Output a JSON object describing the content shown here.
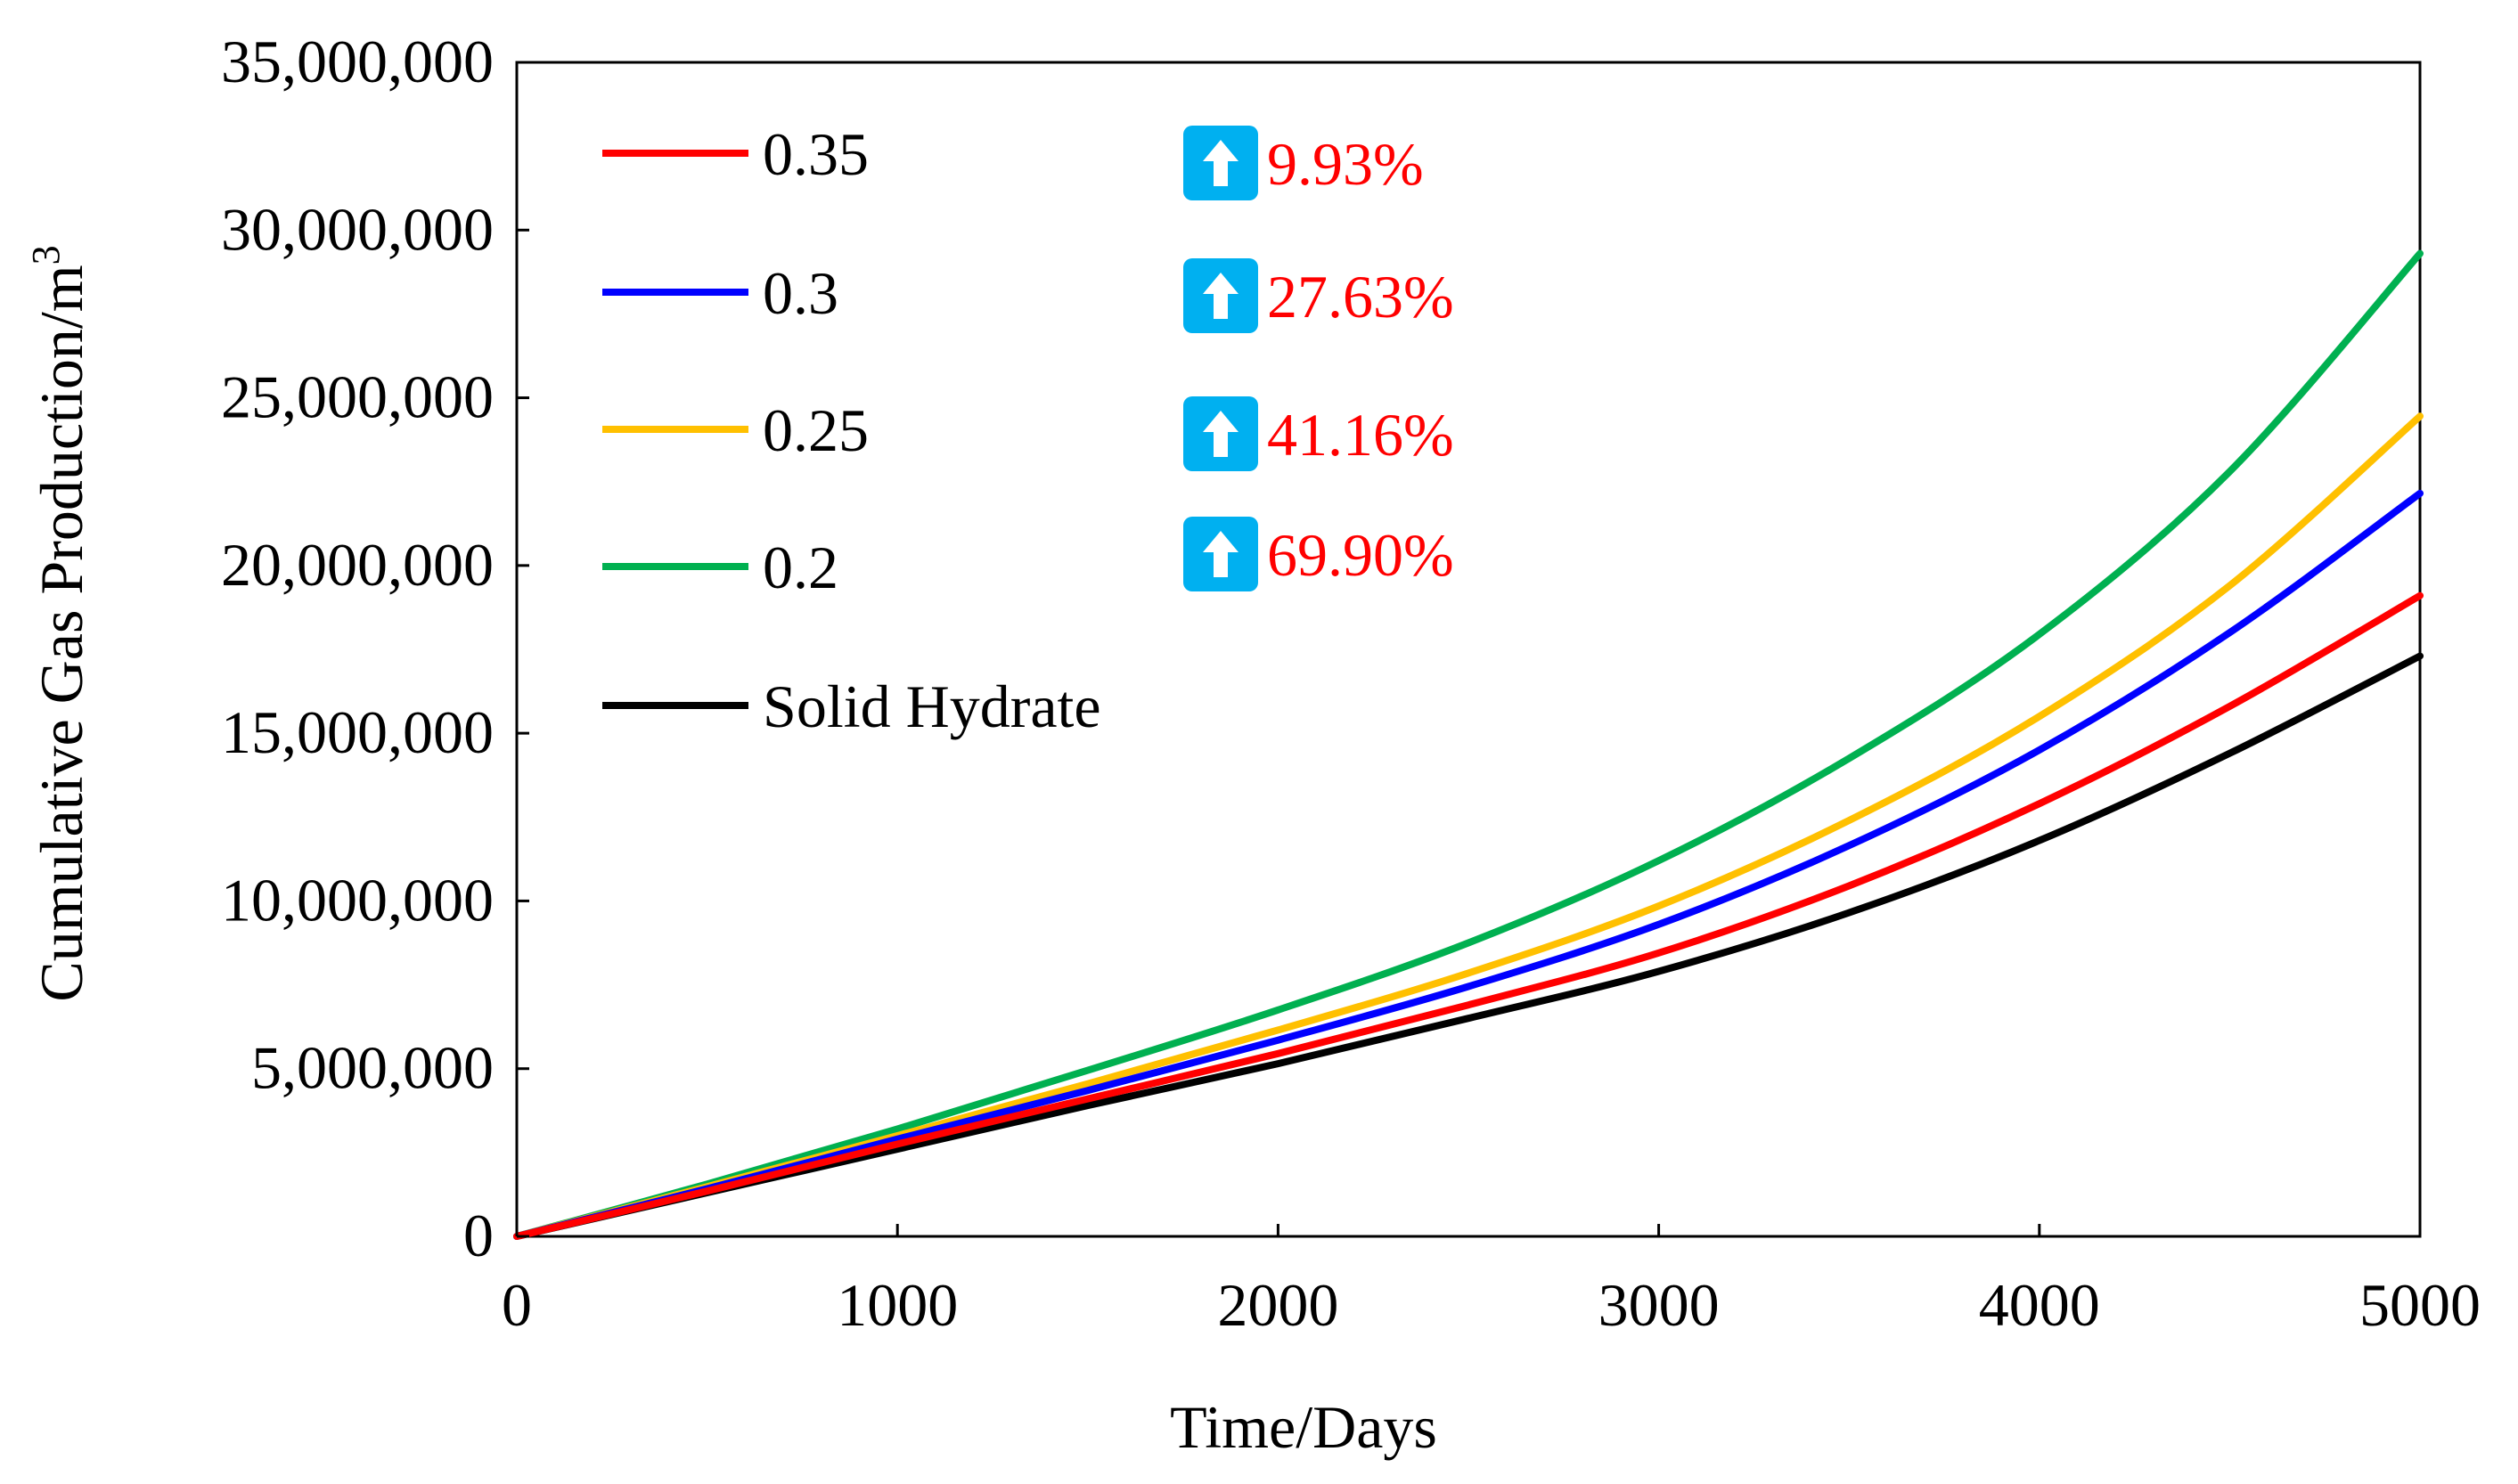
{
  "chart_data": {
    "type": "line",
    "title": "",
    "xlabel": "Time/Days",
    "ylabel": "Cumulative Gas Production/m",
    "ylabel_superscript": "3",
    "xlim": [
      0,
      5000
    ],
    "ylim": [
      0,
      35000000
    ],
    "grid": false,
    "legend_position": "top-left",
    "x_ticks": [
      0,
      1000,
      2000,
      3000,
      4000,
      5000
    ],
    "x_tick_labels": [
      "0",
      "1000",
      "2000",
      "3000",
      "4000",
      "5000"
    ],
    "y_ticks": [
      0,
      5000000,
      10000000,
      15000000,
      20000000,
      25000000,
      30000000,
      35000000
    ],
    "y_tick_labels": [
      "0",
      "5,000,000",
      "10,000,000",
      "15,000,000",
      "20,000,000",
      "25,000,000",
      "30,000,000",
      "35,000,000"
    ],
    "x": [
      0,
      500,
      1000,
      1500,
      2000,
      2500,
      3000,
      3500,
      4000,
      4500,
      5000
    ],
    "series": [
      {
        "name": "0.35",
        "color": "#ff0000",
        "values": [
          0,
          1350000,
          2750000,
          4100000,
          5450000,
          6900000,
          8450000,
          10450000,
          12900000,
          15800000,
          19100000
        ]
      },
      {
        "name": "0.3",
        "color": "#0000ff",
        "values": [
          0,
          1420000,
          2900000,
          4350000,
          5850000,
          7450000,
          9300000,
          11650000,
          14500000,
          18000000,
          22150000
        ]
      },
      {
        "name": "0.25",
        "color": "#ffc000",
        "values": [
          0,
          1480000,
          3000000,
          4550000,
          6150000,
          7850000,
          9850000,
          12400000,
          15500000,
          19400000,
          24450000
        ]
      },
      {
        "name": "0.2",
        "color": "#00b050",
        "values": [
          0,
          1560000,
          3200000,
          4950000,
          6750000,
          8750000,
          11200000,
          14250000,
          17950000,
          22800000,
          29300000
        ]
      },
      {
        "name": "Solid Hydrate",
        "color": "#000000",
        "values": [
          0,
          1300000,
          2600000,
          3900000,
          5150000,
          6500000,
          7900000,
          9650000,
          11800000,
          14400000,
          17300000
        ]
      }
    ],
    "annotations": [
      {
        "series": "0.35",
        "text": "9.93%",
        "color": "#ff0000",
        "icon": "up-arrow-icon"
      },
      {
        "series": "0.3",
        "text": "27.63%",
        "color": "#ff0000",
        "icon": "up-arrow-icon"
      },
      {
        "series": "0.25",
        "text": "41.16%",
        "color": "#ff0000",
        "icon": "up-arrow-icon"
      },
      {
        "series": "0.2",
        "text": "69.90%",
        "color": "#ff0000",
        "icon": "up-arrow-icon"
      }
    ],
    "annotation_icon_color": "#00b0f0"
  }
}
